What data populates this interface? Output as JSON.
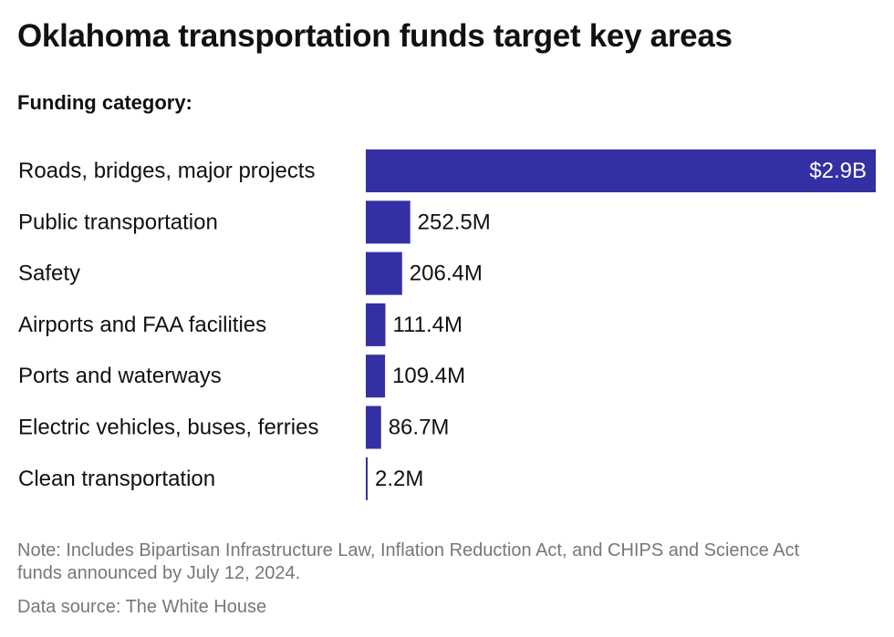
{
  "title": "Oklahoma transportation funds target key areas",
  "subtitle": "Funding category:",
  "note": "Note: Includes Bipartisan Infrastructure Law, Inflation Reduction Act, and CHIPS and Science Act funds announced by July 12, 2024.",
  "source": "Data source: The White House",
  "colors": {
    "bar": "#3330a3",
    "label_inside": "#ffffff",
    "label_outside": "#111111"
  },
  "chart_data": {
    "type": "bar",
    "orientation": "horizontal",
    "categories": [
      "Roads, bridges, major projects",
      "Public transportation",
      "Safety",
      "Airports and FAA facilities",
      "Ports and waterways",
      "Electric vehicles, buses, ferries",
      "Clean transportation"
    ],
    "values": [
      2900000000,
      252500000,
      206400000,
      111400000,
      109400000,
      86700000,
      2200000
    ],
    "value_labels": [
      "$2.9B",
      "252.5M",
      "206.4M",
      "111.4M",
      "109.4M",
      "86.7M",
      "2.2M"
    ],
    "xlim": [
      0,
      2900000000
    ],
    "grid": false,
    "legend": "none"
  }
}
